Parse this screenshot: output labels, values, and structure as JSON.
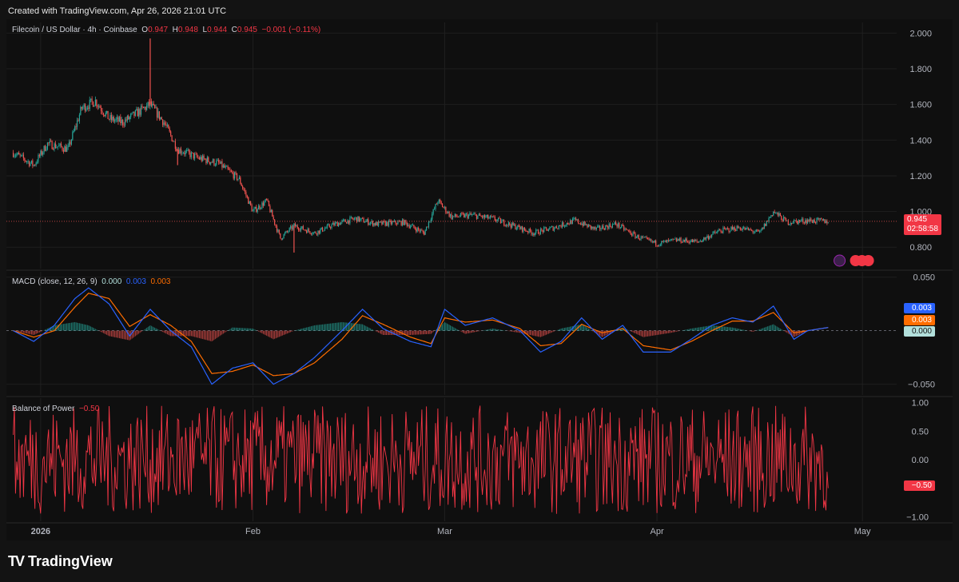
{
  "header": {
    "created": "Created with TradingView.com, Apr 26, 2026 21:01 UTC"
  },
  "main_legend": {
    "symbol": "Filecoin / US Dollar · 4h · Coinbase",
    "o_label": "O",
    "o": "0.947",
    "h_label": "H",
    "h": "0.948",
    "l_label": "L",
    "l": "0.944",
    "c_label": "C",
    "c": "0.945",
    "change": "−0.001 (−0.11%)"
  },
  "price_tag": {
    "price": "0.945",
    "countdown": "02:58:58"
  },
  "macd_legend": {
    "name": "MACD (close, 12, 26, 9)",
    "hist": "0.000",
    "macd": "0.003",
    "signal": "0.003"
  },
  "macd_tags": {
    "macd": "0.003",
    "signal": "0.003",
    "hist": "0.000"
  },
  "bop_legend": {
    "name": "Balance of Power",
    "value": "−0.50"
  },
  "bop_tag": "−0.50",
  "footer": {
    "logo": "TV",
    "brand": "TradingView"
  },
  "colors": {
    "up": "#26a69a",
    "down": "#ef5350",
    "macd": "#2962ff",
    "signal": "#ff6d00",
    "bop": "#f23645",
    "hist_pos": "#26a69a",
    "hist_neg": "#ef5350"
  },
  "chart_data": [
    {
      "type": "candlestick",
      "title": "Filecoin / US Dollar · 4h · Coinbase",
      "ylim": [
        0.68,
        2.06
      ],
      "y_ticks": [
        "2.000",
        "1.800",
        "1.600",
        "1.400",
        "1.200",
        "1.000",
        "0.800"
      ],
      "x_ticks": [
        "2026",
        "Feb",
        "Mar",
        "Apr",
        "May"
      ],
      "close_path": [
        [
          "2025-12-28",
          1.33
        ],
        [
          "2025-12-31",
          1.26
        ],
        [
          "2026-01-02",
          1.38
        ],
        [
          "2026-01-05",
          1.35
        ],
        [
          "2026-01-07",
          1.58
        ],
        [
          "2026-01-09",
          1.62
        ],
        [
          "2026-01-11",
          1.52
        ],
        [
          "2026-01-13",
          1.5
        ],
        [
          "2026-01-15",
          1.55
        ],
        [
          "2026-01-17",
          1.6
        ],
        [
          "2026-01-19",
          1.5
        ],
        [
          "2026-01-21",
          1.35
        ],
        [
          "2026-01-24",
          1.3
        ],
        [
          "2026-01-27",
          1.27
        ],
        [
          "2026-01-30",
          1.18
        ],
        [
          "2026-02-01",
          1.0
        ],
        [
          "2026-02-03",
          1.06
        ],
        [
          "2026-02-05",
          0.85
        ],
        [
          "2026-02-07",
          0.92
        ],
        [
          "2026-02-10",
          0.88
        ],
        [
          "2026-02-13",
          0.93
        ],
        [
          "2026-02-16",
          0.96
        ],
        [
          "2026-02-19",
          0.93
        ],
        [
          "2026-02-23",
          0.94
        ],
        [
          "2026-02-26",
          0.88
        ],
        [
          "2026-02-28",
          1.06
        ],
        [
          "2026-03-02",
          0.97
        ],
        [
          "2026-03-05",
          0.98
        ],
        [
          "2026-03-08",
          0.96
        ],
        [
          "2026-03-11",
          0.92
        ],
        [
          "2026-03-14",
          0.88
        ],
        [
          "2026-03-17",
          0.91
        ],
        [
          "2026-03-20",
          0.95
        ],
        [
          "2026-03-23",
          0.9
        ],
        [
          "2026-03-26",
          0.93
        ],
        [
          "2026-03-29",
          0.86
        ],
        [
          "2026-04-01",
          0.82
        ],
        [
          "2026-04-04",
          0.84
        ],
        [
          "2026-04-07",
          0.83
        ],
        [
          "2026-04-10",
          0.89
        ],
        [
          "2026-04-13",
          0.91
        ],
        [
          "2026-04-16",
          0.88
        ],
        [
          "2026-04-18",
          1.0
        ],
        [
          "2026-04-20",
          0.94
        ],
        [
          "2026-04-23",
          0.95
        ],
        [
          "2026-04-26",
          0.945
        ]
      ],
      "spikes": [
        [
          "2026-01-17",
          1.97
        ],
        [
          "2026-01-21",
          1.26
        ],
        [
          "2026-02-07",
          0.77
        ]
      ],
      "last_price": 0.945
    },
    {
      "type": "line",
      "title": "MACD (close, 12, 26, 9)",
      "ylim": [
        -0.06,
        0.055
      ],
      "y_ticks": [
        "0.050",
        "-0.050"
      ],
      "series": [
        {
          "name": "MACD",
          "values": [
            [
              "2025-12-28",
              0.0
            ],
            [
              "2025-12-31",
              -0.01
            ],
            [
              "2026-01-03",
              0.005
            ],
            [
              "2026-01-06",
              0.03
            ],
            [
              "2026-01-08",
              0.04
            ],
            [
              "2026-01-11",
              0.025
            ],
            [
              "2026-01-14",
              -0.005
            ],
            [
              "2026-01-17",
              0.02
            ],
            [
              "2026-01-20",
              0.0
            ],
            [
              "2026-01-23",
              -0.015
            ],
            [
              "2026-01-26",
              -0.05
            ],
            [
              "2026-01-29",
              -0.035
            ],
            [
              "2026-02-01",
              -0.03
            ],
            [
              "2026-02-04",
              -0.05
            ],
            [
              "2026-02-07",
              -0.04
            ],
            [
              "2026-02-10",
              -0.025
            ],
            [
              "2026-02-14",
              0.0
            ],
            [
              "2026-02-17",
              0.02
            ],
            [
              "2026-02-20",
              0.002
            ],
            [
              "2026-02-24",
              -0.01
            ],
            [
              "2026-02-27",
              -0.015
            ],
            [
              "2026-03-01",
              0.02
            ],
            [
              "2026-03-04",
              0.005
            ],
            [
              "2026-03-08",
              0.012
            ],
            [
              "2026-03-12",
              0.0
            ],
            [
              "2026-03-15",
              -0.02
            ],
            [
              "2026-03-18",
              -0.01
            ],
            [
              "2026-03-21",
              0.012
            ],
            [
              "2026-03-24",
              -0.008
            ],
            [
              "2026-03-27",
              0.005
            ],
            [
              "2026-03-30",
              -0.02
            ],
            [
              "2026-04-03",
              -0.02
            ],
            [
              "2026-04-06",
              -0.008
            ],
            [
              "2026-04-09",
              0.005
            ],
            [
              "2026-04-12",
              0.012
            ],
            [
              "2026-04-15",
              0.008
            ],
            [
              "2026-04-18",
              0.023
            ],
            [
              "2026-04-21",
              -0.008
            ],
            [
              "2026-04-23",
              0.0
            ],
            [
              "2026-04-26",
              0.003
            ]
          ]
        },
        {
          "name": "Signal",
          "values": [
            [
              "2025-12-28",
              0.0
            ],
            [
              "2025-12-31",
              -0.006
            ],
            [
              "2026-01-03",
              0.0
            ],
            [
              "2026-01-06",
              0.022
            ],
            [
              "2026-01-08",
              0.035
            ],
            [
              "2026-01-11",
              0.03
            ],
            [
              "2026-01-14",
              0.004
            ],
            [
              "2026-01-17",
              0.015
            ],
            [
              "2026-01-20",
              0.005
            ],
            [
              "2026-01-23",
              -0.01
            ],
            [
              "2026-01-26",
              -0.04
            ],
            [
              "2026-01-29",
              -0.038
            ],
            [
              "2026-02-01",
              -0.032
            ],
            [
              "2026-02-04",
              -0.042
            ],
            [
              "2026-02-07",
              -0.04
            ],
            [
              "2026-02-10",
              -0.03
            ],
            [
              "2026-02-14",
              -0.008
            ],
            [
              "2026-02-17",
              0.014
            ],
            [
              "2026-02-20",
              0.006
            ],
            [
              "2026-02-24",
              -0.006
            ],
            [
              "2026-02-27",
              -0.012
            ],
            [
              "2026-03-01",
              0.012
            ],
            [
              "2026-03-04",
              0.008
            ],
            [
              "2026-03-08",
              0.01
            ],
            [
              "2026-03-12",
              0.002
            ],
            [
              "2026-03-15",
              -0.014
            ],
            [
              "2026-03-18",
              -0.012
            ],
            [
              "2026-03-21",
              0.006
            ],
            [
              "2026-03-24",
              -0.002
            ],
            [
              "2026-03-27",
              0.002
            ],
            [
              "2026-03-30",
              -0.014
            ],
            [
              "2026-04-03",
              -0.018
            ],
            [
              "2026-04-06",
              -0.01
            ],
            [
              "2026-04-09",
              0.0
            ],
            [
              "2026-04-12",
              0.009
            ],
            [
              "2026-04-15",
              0.009
            ],
            [
              "2026-04-18",
              0.017
            ],
            [
              "2026-04-21",
              -0.002
            ],
            [
              "2026-04-23",
              0.0
            ],
            [
              "2026-04-26",
              0.003
            ]
          ]
        }
      ]
    },
    {
      "type": "line",
      "title": "Balance of Power",
      "ylim": [
        -1.08,
        1.08
      ],
      "y_ticks": [
        "1.00",
        "0.50",
        "0.00",
        "−1.00"
      ],
      "series": [
        {
          "name": "Balance of Power",
          "last_value": -0.5
        }
      ]
    }
  ]
}
